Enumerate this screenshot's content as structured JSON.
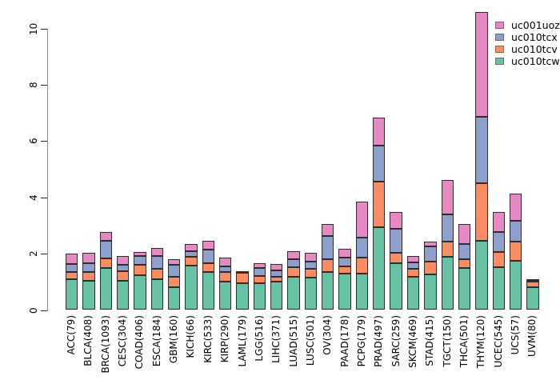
{
  "chart_data": {
    "type": "bar",
    "stacked": true,
    "title": "",
    "xlabel": "",
    "ylabel": "",
    "grid": false,
    "ylim": [
      0,
      10.6
    ],
    "yticks": [
      "0",
      "2",
      "4",
      "6",
      "8",
      "10"
    ],
    "ytick_values": [
      0,
      2,
      4,
      6,
      8,
      10
    ],
    "legend_position": "top-right",
    "categories": [
      "ACC(79)",
      "BLCA(408)",
      "BRCA(1093)",
      "CESC(304)",
      "COAD(406)",
      "ESCA(184)",
      "GBM(160)",
      "KICH(66)",
      "KIRC(533)",
      "KIRP(290)",
      "LAML(179)",
      "LGG(516)",
      "LIHC(371)",
      "LUAD(515)",
      "LUSC(501)",
      "OV(304)",
      "PAAD(178)",
      "PCPG(179)",
      "PRAD(497)",
      "SARC(259)",
      "SKCM(469)",
      "STAD(415)",
      "TGCT(150)",
      "THCA(501)",
      "THYM(120)",
      "UCEC(545)",
      "UCS(57)",
      "UVM(80)"
    ],
    "series": [
      {
        "name": "uc010tcw",
        "color": "#66C2A5",
        "values": [
          1.1,
          1.03,
          1.5,
          1.05,
          1.24,
          1.1,
          0.82,
          1.58,
          1.36,
          1.0,
          0.94,
          0.96,
          1.0,
          1.17,
          1.15,
          1.36,
          1.3,
          1.29,
          2.95,
          1.67,
          1.19,
          1.27,
          1.9,
          1.48,
          2.45,
          1.53,
          1.76,
          0.81
        ]
      },
      {
        "name": "uc010tcv",
        "color": "#FC8D62",
        "values": [
          0.26,
          0.31,
          0.33,
          0.33,
          0.36,
          0.36,
          0.35,
          0.32,
          0.3,
          0.34,
          0.38,
          0.26,
          0.17,
          0.35,
          0.31,
          0.45,
          0.25,
          0.57,
          1.6,
          0.35,
          0.27,
          0.44,
          0.53,
          0.31,
          2.05,
          0.54,
          0.66,
          0.21
        ]
      },
      {
        "name": "uc010tcx",
        "color": "#8DA0CB",
        "values": [
          0.26,
          0.32,
          0.64,
          0.22,
          0.33,
          0.47,
          0.43,
          0.2,
          0.48,
          0.21,
          0.04,
          0.26,
          0.24,
          0.29,
          0.26,
          0.81,
          0.3,
          0.71,
          1.3,
          0.85,
          0.23,
          0.55,
          0.96,
          0.54,
          2.35,
          0.71,
          0.74,
          0.03
        ]
      },
      {
        "name": "uc001uoz",
        "color": "#E78AC3",
        "values": [
          0.38,
          0.36,
          0.29,
          0.33,
          0.14,
          0.28,
          0.19,
          0.25,
          0.33,
          0.3,
          0.03,
          0.18,
          0.21,
          0.28,
          0.32,
          0.43,
          0.33,
          1.27,
          0.98,
          0.62,
          0.24,
          0.17,
          1.23,
          0.72,
          3.74,
          0.71,
          0.96,
          0.03
        ]
      }
    ],
    "legend_entries": [
      {
        "label": "uc001uoz",
        "color": "#E78AC3"
      },
      {
        "label": "uc010tcx",
        "color": "#8DA0CB"
      },
      {
        "label": "uc010tcv",
        "color": "#FC8D62"
      },
      {
        "label": "uc010tcw",
        "color": "#66C2A5"
      }
    ]
  }
}
